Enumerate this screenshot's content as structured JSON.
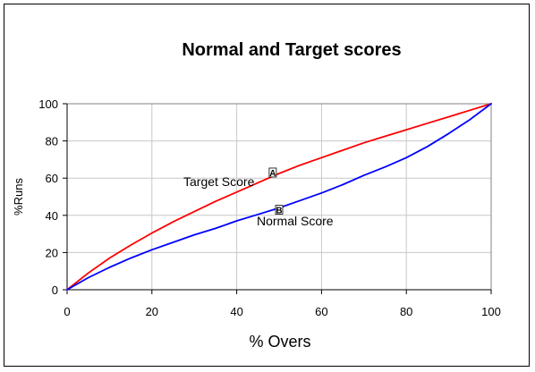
{
  "chart_data": {
    "type": "line",
    "title": "Normal and Target scores",
    "xlabel": "% Overs",
    "ylabel": "%Runs",
    "xlim": [
      0,
      100
    ],
    "ylim": [
      0,
      100
    ],
    "xticks": [
      0,
      20,
      40,
      60,
      80,
      100
    ],
    "yticks": [
      0,
      20,
      40,
      60,
      80,
      100
    ],
    "grid": true,
    "legend": "none",
    "series": [
      {
        "name": "Target Score",
        "color": "#ff0000",
        "x": [
          0,
          5,
          10,
          15,
          20,
          25,
          30,
          35,
          40,
          45,
          50,
          55,
          60,
          65,
          70,
          75,
          80,
          85,
          90,
          95,
          100
        ],
        "y": [
          0,
          9,
          17,
          24,
          30.5,
          36.5,
          42,
          47.5,
          52.5,
          57.5,
          62.5,
          67,
          71,
          75,
          79,
          82.5,
          86,
          89.5,
          93,
          96.5,
          100
        ],
        "marker_letter": "A",
        "marker_x": 48.5,
        "marker_y": 63
      },
      {
        "name": "Normal Score",
        "color": "#0000ff",
        "x": [
          0,
          5,
          10,
          15,
          20,
          25,
          30,
          35,
          40,
          45,
          50,
          55,
          60,
          65,
          70,
          75,
          80,
          85,
          90,
          95,
          100
        ],
        "y": [
          0,
          6.5,
          12,
          17,
          21.5,
          25.5,
          29.5,
          33,
          37,
          40.5,
          44,
          48,
          52,
          56.5,
          61.5,
          66,
          71,
          77,
          84,
          91.5,
          100
        ],
        "marker_letter": "B",
        "marker_x": 50,
        "marker_y": 43
      }
    ]
  }
}
